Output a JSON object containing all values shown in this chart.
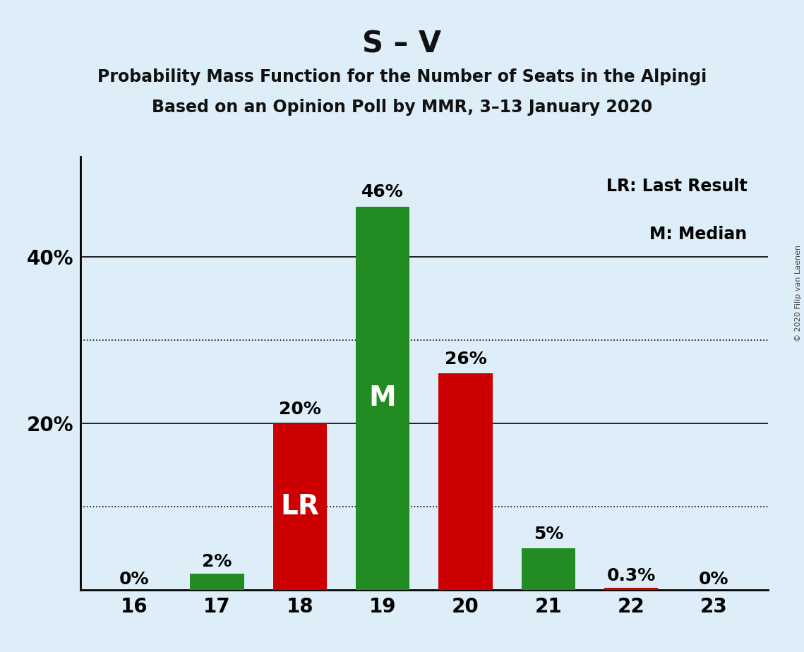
{
  "title": "S – V",
  "subtitle1": "Probability Mass Function for the Number of Seats in the Alpingi",
  "subtitle2": "Based on an Opinion Poll by MMR, 3–13 January 2020",
  "copyright": "© 2020 Filip van Laenen",
  "seats": [
    16,
    17,
    18,
    19,
    20,
    21,
    22,
    23
  ],
  "values": [
    0.0,
    2.0,
    20.0,
    46.0,
    26.0,
    5.0,
    0.3,
    0.0
  ],
  "colors": [
    "#228B22",
    "#228B22",
    "#CC0000",
    "#228B22",
    "#CC0000",
    "#228B22",
    "#CC0000",
    "#228B22"
  ],
  "labels": [
    "0%",
    "2%",
    "20%",
    "46%",
    "26%",
    "5%",
    "0.3%",
    "0%"
  ],
  "bar_annotations": [
    "",
    "",
    "LR",
    "M",
    "",
    "",
    "",
    ""
  ],
  "legend_lr": "LR: Last Result",
  "legend_m": "M: Median",
  "background_color": "#DDEEF8",
  "ytick_positions": [
    20,
    40
  ],
  "ytick_labels": [
    "20%",
    "40%"
  ],
  "dotted_lines": [
    10,
    30
  ],
  "solid_lines": [
    20,
    40
  ],
  "ylim": [
    0,
    52
  ],
  "bar_width": 0.65,
  "title_fontsize": 30,
  "subtitle_fontsize": 17,
  "label_fontsize": 18,
  "tick_fontsize": 20,
  "bar_annot_fontsize": 28,
  "legend_fontsize": 17
}
